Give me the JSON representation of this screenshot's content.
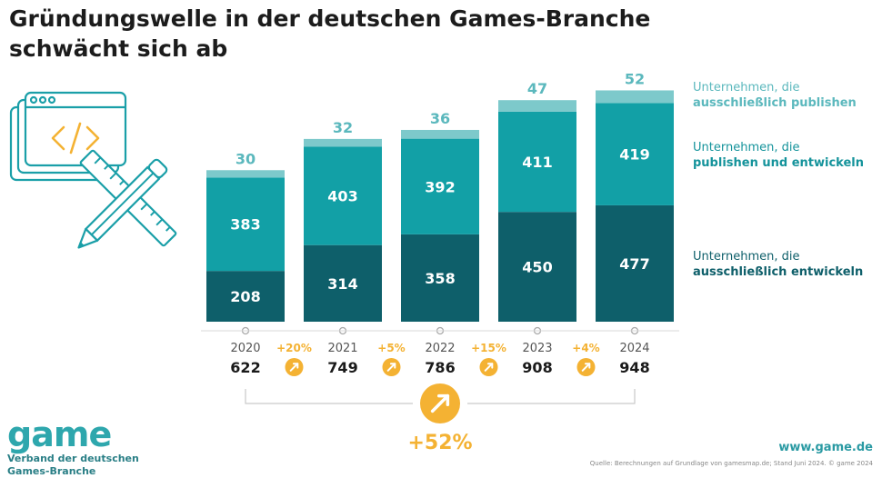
{
  "title_line1": "Gründungswelle in der deutschen Games-Branche",
  "title_line2": "schwächt sich ab",
  "colors": {
    "dev": "#0e5f6a",
    "both": "#12a0a6",
    "pub": "#7dc9cb",
    "accent": "#f4b233",
    "pub_text": "#5bb8bd",
    "both_text": "#14939b",
    "dev_text": "#0e5f6a"
  },
  "legend": {
    "pub": {
      "line1": "Unternehmen, die",
      "line2": "ausschließlich publishen"
    },
    "both": {
      "line1": "Unternehmen, die",
      "line2": "publishen und entwickeln"
    },
    "dev": {
      "line1": "Unternehmen, die",
      "line2": "ausschließlich entwickeln"
    }
  },
  "chart_data": {
    "type": "bar",
    "stacked": true,
    "categories": [
      "2020",
      "2021",
      "2022",
      "2023",
      "2024"
    ],
    "series": [
      {
        "key": "dev",
        "name": "Unternehmen, die ausschließlich entwickeln",
        "values": [
          208,
          314,
          358,
          450,
          477
        ]
      },
      {
        "key": "both",
        "name": "Unternehmen, die publishen und entwickeln",
        "values": [
          383,
          403,
          392,
          411,
          419
        ]
      },
      {
        "key": "pub",
        "name": "Unternehmen, die ausschließlich publishen",
        "values": [
          30,
          32,
          36,
          47,
          52
        ]
      }
    ],
    "totals": [
      "622",
      "749",
      "786",
      "908",
      "948"
    ],
    "growth": [
      "+20%",
      "+5%",
      "+15%",
      "+4%"
    ],
    "overall_growth": "+52%"
  },
  "brand": {
    "name": "game",
    "sub1": "Verband der deutschen",
    "sub2": "Games-Branche"
  },
  "website": "www.game.de",
  "source": "Quelle: Berechnungen auf Grundlage von gamesmap.de; Stand Juni 2024. © game 2024"
}
